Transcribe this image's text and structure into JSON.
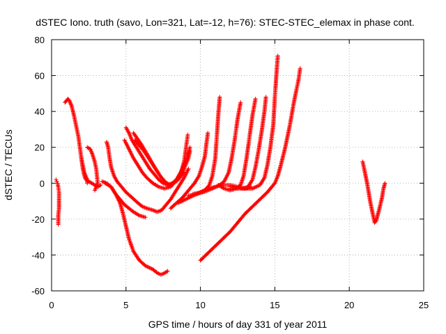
{
  "chart_data": {
    "type": "scatter",
    "title": "dSTEC Iono. truth (savo, Lon=321, Lat=-12, h=76): STEC-STEC_elemax in phase cont.",
    "xlabel": "GPS time / hours of day 331 of year 2011",
    "ylabel": "dSTEC  / TECUs",
    "xlim": [
      0,
      25
    ],
    "ylim": [
      -60,
      80
    ],
    "xticks": [
      0,
      5,
      10,
      15,
      20,
      25
    ],
    "yticks": [
      -60,
      -40,
      -20,
      0,
      20,
      40,
      60,
      80
    ],
    "grid": true,
    "marker": "plus",
    "color": "#ff0000",
    "arcs": [
      [
        [
          0.3,
          2
        ],
        [
          0.35,
          1
        ],
        [
          0.4,
          0
        ],
        [
          0.45,
          -2
        ],
        [
          0.5,
          -5
        ],
        [
          0.5,
          -9
        ],
        [
          0.5,
          -14
        ],
        [
          0.45,
          -18
        ],
        [
          0.45,
          -23
        ]
      ],
      [
        [
          0.9,
          45
        ],
        [
          1.0,
          46
        ],
        [
          1.1,
          47
        ],
        [
          1.2,
          46
        ],
        [
          1.35,
          43
        ],
        [
          1.5,
          38
        ],
        [
          1.65,
          32
        ],
        [
          1.8,
          26
        ],
        [
          1.9,
          20
        ],
        [
          2.0,
          14
        ],
        [
          2.1,
          8
        ],
        [
          2.2,
          4
        ],
        [
          2.3,
          2
        ],
        [
          2.5,
          1
        ],
        [
          2.7,
          0
        ],
        [
          2.9,
          -1
        ],
        [
          3.1,
          -2
        ],
        [
          3.3,
          -1
        ]
      ],
      [
        [
          2.0,
          14
        ],
        [
          2.1,
          10
        ],
        [
          2.2,
          6
        ],
        [
          2.3,
          4
        ],
        [
          2.4,
          2
        ],
        [
          2.4,
          0
        ]
      ],
      [
        [
          2.4,
          20
        ],
        [
          2.6,
          19
        ],
        [
          2.75,
          16
        ],
        [
          2.9,
          12
        ],
        [
          3.0,
          8
        ],
        [
          3.05,
          4
        ],
        [
          3.1,
          0
        ],
        [
          3.0,
          -2
        ],
        [
          2.9,
          -4
        ]
      ],
      [
        [
          3.4,
          1
        ],
        [
          3.7,
          0
        ],
        [
          4.0,
          -2
        ],
        [
          4.3,
          -6
        ],
        [
          4.6,
          -11
        ],
        [
          4.8,
          -17
        ],
        [
          5.0,
          -24
        ],
        [
          5.2,
          -31
        ],
        [
          5.5,
          -38
        ],
        [
          5.9,
          -43
        ],
        [
          6.3,
          -46
        ],
        [
          6.8,
          -48
        ],
        [
          7.1,
          -50
        ],
        [
          7.35,
          -51
        ],
        [
          7.6,
          -50
        ],
        [
          7.8,
          -49
        ]
      ],
      [
        [
          3.7,
          23
        ],
        [
          3.8,
          20
        ],
        [
          3.9,
          14
        ],
        [
          4.0,
          9
        ],
        [
          4.2,
          4
        ],
        [
          4.4,
          1
        ],
        [
          4.7,
          -2
        ],
        [
          5.0,
          -5
        ],
        [
          5.4,
          -8
        ],
        [
          5.8,
          -11
        ],
        [
          6.1,
          -13
        ],
        [
          6.4,
          -14
        ],
        [
          6.8,
          -15
        ],
        [
          7.1,
          -16
        ],
        [
          7.4,
          -15
        ],
        [
          7.7,
          -12
        ],
        [
          8.0,
          -9
        ],
        [
          8.3,
          -5
        ],
        [
          8.6,
          -1
        ],
        [
          8.9,
          3
        ],
        [
          9.2,
          8
        ]
      ],
      [
        [
          3.6,
          0
        ],
        [
          4.0,
          -2
        ],
        [
          4.3,
          -6
        ],
        [
          4.6,
          -9
        ],
        [
          4.9,
          -12
        ],
        [
          5.2,
          -14
        ],
        [
          5.5,
          -16
        ],
        [
          5.9,
          -18
        ],
        [
          6.3,
          -19
        ]
      ],
      [
        [
          5.0,
          31
        ],
        [
          5.2,
          28
        ],
        [
          5.4,
          24
        ],
        [
          5.7,
          20
        ],
        [
          6.0,
          16
        ],
        [
          6.3,
          12
        ],
        [
          6.6,
          8
        ],
        [
          6.9,
          5
        ],
        [
          7.2,
          2
        ],
        [
          7.5,
          0
        ],
        [
          7.8,
          -1
        ],
        [
          8.1,
          0
        ],
        [
          8.4,
          2
        ],
        [
          8.7,
          6
        ],
        [
          8.9,
          12
        ],
        [
          9.0,
          18
        ],
        [
          9.1,
          24
        ],
        [
          9.15,
          27
        ]
      ],
      [
        [
          4.9,
          24
        ],
        [
          5.2,
          19
        ],
        [
          5.5,
          14
        ],
        [
          5.8,
          10
        ],
        [
          6.1,
          6
        ],
        [
          6.4,
          3
        ],
        [
          6.8,
          0
        ],
        [
          7.2,
          -2
        ],
        [
          7.6,
          -3
        ],
        [
          8.0,
          -2
        ],
        [
          8.4,
          2
        ],
        [
          8.8,
          8
        ],
        [
          9.1,
          14
        ],
        [
          9.3,
          20
        ]
      ],
      [
        [
          5.6,
          24
        ],
        [
          5.9,
          21
        ],
        [
          6.2,
          18
        ],
        [
          6.6,
          13
        ],
        [
          7.0,
          8
        ],
        [
          7.3,
          4
        ],
        [
          7.6,
          1
        ],
        [
          7.9,
          -1
        ],
        [
          8.2,
          0
        ],
        [
          8.5,
          2
        ],
        [
          8.8,
          6
        ],
        [
          9.0,
          10
        ],
        [
          9.2,
          14
        ],
        [
          9.3,
          18
        ]
      ],
      [
        [
          5.5,
          28
        ],
        [
          6.0,
          22
        ],
        [
          6.5,
          15
        ],
        [
          6.9,
          9
        ],
        [
          7.3,
          4
        ],
        [
          7.7,
          0
        ],
        [
          8.1,
          -1
        ],
        [
          8.5,
          2
        ],
        [
          8.9,
          6
        ]
      ],
      [
        [
          8.0,
          -14
        ],
        [
          8.4,
          -11
        ],
        [
          8.8,
          -8
        ],
        [
          9.2,
          -4
        ],
        [
          9.6,
          0
        ],
        [
          9.9,
          4
        ],
        [
          10.1,
          9
        ],
        [
          10.3,
          15
        ],
        [
          10.4,
          22
        ],
        [
          10.5,
          28
        ]
      ],
      [
        [
          8.5,
          -11
        ],
        [
          9.0,
          -9
        ],
        [
          9.5,
          -7
        ],
        [
          10.0,
          -5
        ],
        [
          10.5,
          -3
        ],
        [
          11.0,
          -2
        ],
        [
          11.5,
          -1
        ],
        [
          12.0,
          -1
        ],
        [
          12.5,
          -2
        ],
        [
          13.0,
          -3
        ],
        [
          13.4,
          -2
        ]
      ],
      [
        [
          9.2,
          -7
        ],
        [
          9.8,
          -6
        ],
        [
          10.3,
          -4
        ],
        [
          10.6,
          -1
        ],
        [
          10.8,
          4
        ],
        [
          11.0,
          14
        ],
        [
          11.1,
          26
        ],
        [
          11.2,
          38
        ],
        [
          11.3,
          48
        ]
      ],
      [
        [
          9.5,
          -6
        ],
        [
          10.2,
          -5
        ],
        [
          10.8,
          -3
        ],
        [
          11.3,
          -1
        ],
        [
          11.6,
          1
        ],
        [
          11.9,
          6
        ],
        [
          12.1,
          14
        ],
        [
          12.3,
          24
        ],
        [
          12.5,
          36
        ],
        [
          12.7,
          45
        ]
      ],
      [
        [
          11.2,
          -1
        ],
        [
          11.6,
          -3
        ],
        [
          12.0,
          -4
        ],
        [
          12.4,
          -3
        ],
        [
          12.7,
          -1
        ],
        [
          12.9,
          4
        ],
        [
          13.1,
          14
        ],
        [
          13.3,
          26
        ],
        [
          13.5,
          38
        ],
        [
          13.7,
          47
        ]
      ],
      [
        [
          12.0,
          -3
        ],
        [
          12.4,
          -3
        ],
        [
          12.8,
          -3
        ],
        [
          13.2,
          -2
        ],
        [
          13.5,
          2
        ],
        [
          13.7,
          9
        ],
        [
          13.9,
          18
        ],
        [
          14.1,
          28
        ],
        [
          14.3,
          40
        ],
        [
          14.4,
          48
        ]
      ],
      [
        [
          10.0,
          -43
        ],
        [
          10.5,
          -39
        ],
        [
          11.0,
          -35
        ],
        [
          11.5,
          -31
        ],
        [
          12.0,
          -27
        ],
        [
          12.5,
          -22
        ],
        [
          13.0,
          -17
        ],
        [
          13.5,
          -13
        ],
        [
          14.0,
          -9
        ],
        [
          14.5,
          -5
        ],
        [
          14.8,
          -2
        ],
        [
          15.0,
          0
        ],
        [
          15.2,
          4
        ],
        [
          15.4,
          10
        ],
        [
          15.7,
          20
        ],
        [
          16.0,
          32
        ],
        [
          16.3,
          46
        ],
        [
          16.6,
          58
        ],
        [
          16.7,
          64
        ]
      ],
      [
        [
          12.0,
          -2
        ],
        [
          12.8,
          -3
        ],
        [
          13.5,
          -3
        ],
        [
          14.0,
          -1
        ],
        [
          14.3,
          3
        ],
        [
          14.5,
          10
        ],
        [
          14.7,
          20
        ],
        [
          14.9,
          33
        ],
        [
          15.0,
          48
        ],
        [
          15.1,
          60
        ],
        [
          15.2,
          71
        ]
      ],
      [
        [
          20.9,
          12
        ],
        [
          21.0,
          8
        ],
        [
          21.2,
          0
        ],
        [
          21.4,
          -10
        ],
        [
          21.6,
          -18
        ],
        [
          21.7,
          -22
        ],
        [
          21.8,
          -21
        ],
        [
          22.0,
          -15
        ],
        [
          22.2,
          -8
        ],
        [
          22.3,
          -3
        ],
        [
          22.4,
          0
        ]
      ]
    ]
  }
}
